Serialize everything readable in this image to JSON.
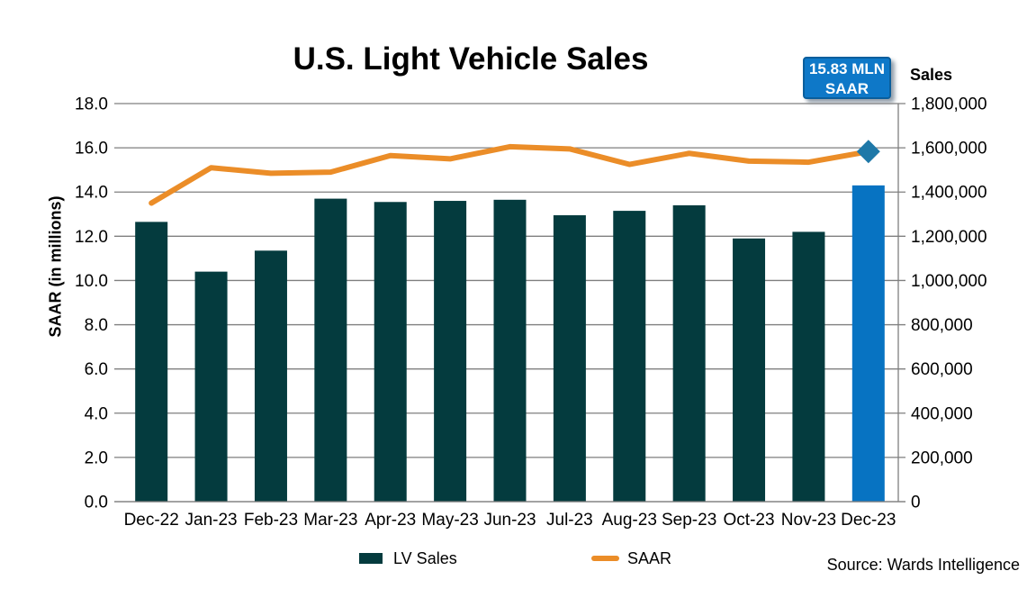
{
  "title": "U.S. Light Vehicle Sales",
  "annotation": {
    "line1": "15.83 MLN",
    "line2": "SAAR"
  },
  "source": "Source: Wards Intelligence",
  "legend": {
    "bar_label": "LV Sales",
    "line_label": "SAAR"
  },
  "colors": {
    "teal": "#043B3E",
    "orange": "#EB8D28",
    "highlight_blue": "#0773C2",
    "diamond_blue": "#1E78A8",
    "callout_bg": "#0E78C8",
    "callout_border": "#0A5E9C",
    "grid_gray": "#7F7F7F"
  },
  "chart_data": {
    "type": "combo",
    "categories": [
      "Dec-22",
      "Jan-23",
      "Feb-23",
      "Mar-23",
      "Apr-23",
      "May-23",
      "Jun-23",
      "Jul-23",
      "Aug-23",
      "Sep-23",
      "Oct-23",
      "Nov-23",
      "Dec-23"
    ],
    "series": [
      {
        "name": "LV Sales",
        "type": "bar",
        "axis": "right",
        "values": [
          1265000,
          1040000,
          1135000,
          1370000,
          1355000,
          1360000,
          1365000,
          1295000,
          1315000,
          1340000,
          1190000,
          1220000,
          1430000
        ],
        "highlight_index": 12
      },
      {
        "name": "SAAR",
        "type": "line",
        "axis": "left",
        "values": [
          13.5,
          15.1,
          14.85,
          14.9,
          15.65,
          15.5,
          16.05,
          15.95,
          15.25,
          15.75,
          15.4,
          15.35,
          15.83
        ],
        "last_point_marker": "diamond"
      }
    ],
    "left_axis": {
      "label": "SAAR (in millions)",
      "min": 0,
      "max": 18,
      "step": 2,
      "ticks": [
        "0.0",
        "2.0",
        "4.0",
        "6.0",
        "8.0",
        "10.0",
        "12.0",
        "14.0",
        "16.0",
        "18.0"
      ]
    },
    "right_axis": {
      "label": "Sales",
      "min": 0,
      "max": 1800000,
      "step": 200000,
      "ticks": [
        "0",
        "200,000",
        "400,000",
        "600,000",
        "800,000",
        "1,000,000",
        "1,200,000",
        "1,400,000",
        "1,600,000",
        "1,800,000"
      ]
    },
    "grid": true,
    "legend_position": "bottom"
  }
}
